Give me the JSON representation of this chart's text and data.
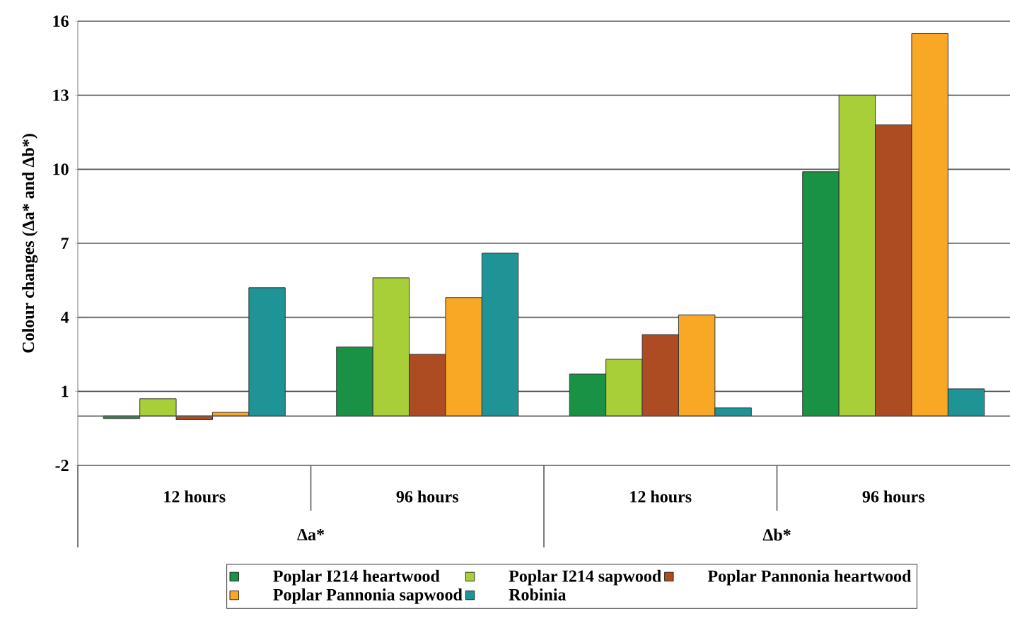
{
  "chart_data": {
    "type": "bar",
    "ylabel": "Colour changes (Δa* and Δb*)",
    "categories": [
      "12 hours",
      "96 hours",
      "12 hours",
      "96 hours"
    ],
    "annotations": [
      "Δa*",
      "Δb*"
    ],
    "series": [
      {
        "name": "Poplar I214 heartwood",
        "color": "#1a9245",
        "values": [
          -0.1,
          2.8,
          1.7,
          9.9
        ]
      },
      {
        "name": "Poplar I214 sapwood",
        "color": "#a9cf38",
        "values": [
          0.7,
          5.6,
          2.3,
          13.0
        ]
      },
      {
        "name": "Poplar Pannonia heartwood",
        "color": "#ad4c22",
        "values": [
          -0.15,
          2.5,
          3.3,
          11.8
        ]
      },
      {
        "name": "Poplar Pannonia sapwood",
        "color": "#f9a825",
        "values": [
          0.15,
          4.8,
          4.1,
          15.5
        ]
      },
      {
        "name": "Robinia",
        "color": "#1f9496",
        "values": [
          5.2,
          6.6,
          0.33,
          1.1
        ]
      }
    ],
    "ylim": [
      -2,
      16
    ],
    "yticks": [
      -2,
      1,
      4,
      7,
      10,
      13,
      16
    ],
    "grid": "y",
    "legend": "bottom"
  }
}
